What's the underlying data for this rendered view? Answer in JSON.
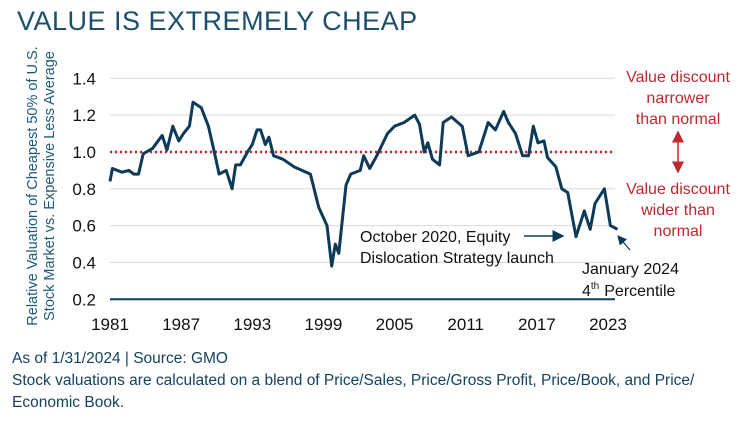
{
  "title": "VALUE IS EXTREMELY CHEAP",
  "chart_data": {
    "type": "line",
    "title": "",
    "ylabel_lines": [
      "Relative Valuation of Cheapest 50% of U.S.",
      "Stock Market vs. Expensive Less Average"
    ],
    "xlabel": "",
    "ylim": [
      0.2,
      1.4
    ],
    "xlim": [
      1981,
      2024
    ],
    "yticks": [
      "0.2",
      "0.4",
      "0.6",
      "0.8",
      "1.0",
      "1.2",
      "1.4"
    ],
    "xticks": [
      "1981",
      "1987",
      "1993",
      "1999",
      "2005",
      "2011",
      "2017",
      "2023"
    ],
    "grid": true,
    "reference_line": {
      "value": 1.0,
      "style": "dotted",
      "color": "#c0282d"
    },
    "line_color": "#0e3a5a",
    "series": [
      {
        "x": [
          1981.0,
          1981.2,
          1982.0,
          1982.6,
          1983.0,
          1983.4,
          1983.8,
          1984.6,
          1985.4,
          1985.8,
          1986.3,
          1986.8,
          1987.2,
          1987.7,
          1988.0,
          1988.7,
          1989.3,
          1989.8,
          1990.2,
          1990.8,
          1991.3,
          1991.6,
          1992.0,
          1992.6,
          1993.0,
          1993.4,
          1993.7,
          1994.1,
          1994.4,
          1994.8,
          1995.6,
          1996.5,
          1997.9,
          1998.6,
          1999.3,
          1999.7,
          2000.0,
          2000.3,
          2000.9,
          2001.3,
          2002.1,
          2002.4,
          2002.9,
          2003.5,
          2004.4,
          2005.0,
          2005.8,
          2006.7,
          2007.1,
          2007.5,
          2007.8,
          2008.2,
          2008.8,
          2009.1,
          2009.8,
          2010.7,
          2011.2,
          2012.1,
          2012.9,
          2013.5,
          2014.2,
          2014.6,
          2015.2,
          2015.8,
          2016.3,
          2016.7,
          2017.1,
          2017.6,
          2017.9,
          2018.6,
          2019.1,
          2019.6,
          2020.3,
          2021.0,
          2021.5,
          2021.9,
          2022.7,
          2023.2,
          2023.8
        ],
        "y": [
          0.84,
          0.91,
          0.89,
          0.9,
          0.88,
          0.88,
          0.99,
          1.02,
          1.09,
          1.01,
          1.14,
          1.06,
          1.1,
          1.14,
          1.27,
          1.24,
          1.14,
          1.0,
          0.88,
          0.9,
          0.8,
          0.93,
          0.93,
          1.0,
          1.04,
          1.12,
          1.12,
          1.04,
          1.08,
          0.98,
          0.96,
          0.92,
          0.88,
          0.7,
          0.6,
          0.38,
          0.5,
          0.45,
          0.82,
          0.88,
          0.9,
          0.98,
          0.91,
          0.98,
          1.1,
          1.14,
          1.16,
          1.2,
          1.15,
          1.0,
          1.05,
          0.96,
          0.93,
          1.16,
          1.19,
          1.14,
          0.98,
          1.0,
          1.16,
          1.12,
          1.22,
          1.16,
          1.1,
          0.98,
          0.98,
          1.14,
          1.05,
          1.06,
          0.97,
          0.92,
          0.8,
          0.78,
          0.54,
          0.68,
          0.58,
          0.72,
          0.8,
          0.6,
          0.58
        ]
      }
    ],
    "annotations": {
      "launch": [
        "October 2020, Equity",
        "Dislocation Strategy launch"
      ],
      "latest": [
        "January 2024",
        "4",
        "th",
        "Percentile"
      ],
      "narrower": [
        "Value discount",
        "narrower",
        "than normal"
      ],
      "wider": [
        "Value discount",
        "wider than",
        "normal"
      ]
    }
  },
  "footer": {
    "source": "As of 1/31/2024 | Source: GMO",
    "note_line1": "Stock valuations are calculated on a blend of Price/Sales, Price/Gross Profit, Price/Book, and Price/",
    "note_line2": "Economic Book."
  }
}
